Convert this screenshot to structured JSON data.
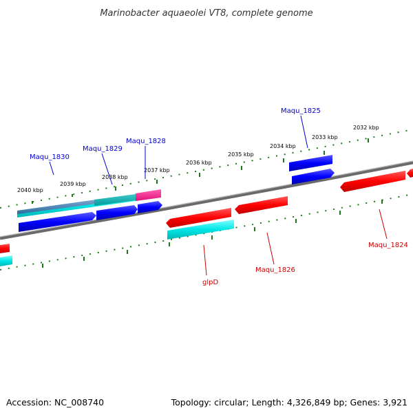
{
  "title": "Marinobacter aquaeolei VT8, complete genome",
  "footer": {
    "accession": "Accession: NC_008740",
    "summary": "Topology: circular; Length: 4,326,849 bp; Genes: 3,921"
  },
  "colors": {
    "forward_cds": "#0000ff",
    "reverse_cds": "#ff0000",
    "forward_rna": "#00c8c8",
    "reverse_rna": "#00ffff",
    "pink_feature": "#ff1493",
    "steel_feature": "#4682b4",
    "backbone": "#808080",
    "ticks": "#1a7a1a",
    "forward_label": "#0000cc",
    "reverse_label": "#cc0000"
  },
  "tick_labels_outer": [
    "2040 kbp",
    "2039 kbp",
    "2038 kbp",
    "2037 kbp",
    "2036 kbp",
    "2035 kbp",
    "2034 kbp",
    "2033 kbp",
    "2032 kbp"
  ],
  "gene_labels": {
    "forward": [
      "Maqu_1830",
      "Maqu_1829",
      "Maqu_1828",
      "Maqu_1825"
    ],
    "reverse": [
      "glpD",
      "Maqu_1826",
      "Maqu_1824"
    ]
  }
}
